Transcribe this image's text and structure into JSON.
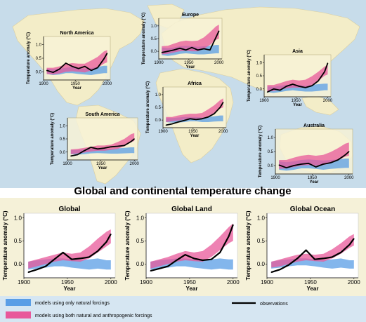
{
  "figure": {
    "main_title": "Global and continental temperature change",
    "legend": {
      "natural": "models using only natural forcings",
      "both": "models using both natural and anthropogenic forcings",
      "observations": "observations"
    },
    "colors": {
      "natural": "#5a9ee6",
      "both": "#e8589a",
      "observations": "#000000",
      "ocean": "#c7dcea",
      "land": "#f3edc8",
      "bottom_panel": "#f5f1d8",
      "legend_bg": "#d6e6f2"
    }
  },
  "chart_data": [
    {
      "type": "area",
      "title": "North America",
      "xlabel": "Year",
      "ylabel": "Temperature anomaly (°C)",
      "xticks": [
        1900,
        1950,
        2000
      ],
      "yticks": [
        0.0,
        0.5,
        1.0
      ],
      "xlim": [
        1900,
        2005
      ],
      "ylim": [
        -0.3,
        1.3
      ],
      "x": [
        1905,
        1915,
        1925,
        1935,
        1945,
        1955,
        1965,
        1975,
        1985,
        1995,
        2000
      ],
      "natural": {
        "low": [
          -0.08,
          -0.12,
          -0.1,
          -0.05,
          -0.05,
          -0.08,
          -0.1,
          -0.12,
          -0.08,
          -0.05,
          -0.05
        ],
        "high": [
          0.12,
          0.1,
          0.12,
          0.15,
          0.18,
          0.15,
          0.12,
          0.14,
          0.18,
          0.22,
          0.22
        ]
      },
      "both": {
        "low": [
          -0.08,
          -0.1,
          -0.06,
          0.0,
          0.02,
          0.0,
          -0.02,
          0.05,
          0.15,
          0.3,
          0.35
        ],
        "high": [
          0.15,
          0.15,
          0.2,
          0.28,
          0.32,
          0.3,
          0.3,
          0.42,
          0.55,
          0.75,
          0.8
        ]
      },
      "observations": [
        0.05,
        -0.02,
        0.1,
        0.32,
        0.2,
        0.12,
        0.2,
        0.05,
        0.15,
        0.48,
        0.68
      ]
    },
    {
      "type": "area",
      "title": "Europe",
      "xlabel": "Year",
      "ylabel": "Temperature anomaly (°C)",
      "xticks": [
        1900,
        1950,
        2000
      ],
      "yticks": [
        0.0,
        0.5,
        1.0
      ],
      "xlim": [
        1900,
        2005
      ],
      "ylim": [
        -0.3,
        1.3
      ],
      "x": [
        1905,
        1915,
        1925,
        1935,
        1945,
        1955,
        1965,
        1975,
        1985,
        1995,
        2000
      ],
      "natural": {
        "low": [
          -0.15,
          -0.18,
          -0.15,
          -0.1,
          -0.08,
          -0.1,
          -0.12,
          -0.12,
          -0.1,
          -0.08,
          -0.08
        ],
        "high": [
          0.15,
          0.12,
          0.15,
          0.2,
          0.22,
          0.2,
          0.18,
          0.2,
          0.22,
          0.25,
          0.25
        ]
      },
      "both": {
        "low": [
          -0.12,
          -0.1,
          -0.05,
          0.0,
          0.02,
          0.0,
          0.0,
          0.1,
          0.25,
          0.45,
          0.5
        ],
        "high": [
          0.2,
          0.22,
          0.3,
          0.38,
          0.42,
          0.4,
          0.42,
          0.55,
          0.75,
          0.98,
          1.05
        ]
      },
      "observations": [
        -0.05,
        0.0,
        0.05,
        0.12,
        0.05,
        0.15,
        0.05,
        0.1,
        0.05,
        0.55,
        0.8
      ]
    },
    {
      "type": "area",
      "title": "Asia",
      "xlabel": "Year",
      "ylabel": "Temperature anomaly (°C)",
      "xticks": [
        1900,
        1950,
        2000
      ],
      "yticks": [
        0.0,
        0.5,
        1.0
      ],
      "xlim": [
        1900,
        2005
      ],
      "ylim": [
        -0.3,
        1.3
      ],
      "x": [
        1905,
        1915,
        1925,
        1935,
        1945,
        1955,
        1965,
        1975,
        1985,
        1995,
        2000
      ],
      "natural": {
        "low": [
          -0.12,
          -0.15,
          -0.12,
          -0.08,
          -0.05,
          -0.08,
          -0.1,
          -0.1,
          -0.08,
          -0.05,
          -0.05
        ],
        "high": [
          0.1,
          0.08,
          0.12,
          0.15,
          0.18,
          0.15,
          0.12,
          0.15,
          0.18,
          0.2,
          0.2
        ]
      },
      "both": {
        "low": [
          -0.1,
          -0.08,
          -0.02,
          0.02,
          0.05,
          0.05,
          0.05,
          0.15,
          0.3,
          0.5,
          0.55
        ],
        "high": [
          0.15,
          0.15,
          0.22,
          0.3,
          0.35,
          0.32,
          0.35,
          0.48,
          0.65,
          0.85,
          0.92
        ]
      },
      "observations": [
        -0.12,
        0.0,
        -0.05,
        0.1,
        0.18,
        0.1,
        0.05,
        0.12,
        0.3,
        0.65,
        0.98
      ]
    },
    {
      "type": "area",
      "title": "Africa",
      "xlabel": "Year",
      "ylabel": "Temperature anomaly (°C)",
      "xticks": [
        1900,
        1950,
        2000
      ],
      "yticks": [
        0.0,
        0.5,
        1.0
      ],
      "xlim": [
        1900,
        2005
      ],
      "ylim": [
        -0.3,
        1.3
      ],
      "x": [
        1905,
        1915,
        1925,
        1935,
        1945,
        1955,
        1965,
        1975,
        1985,
        1995,
        2000
      ],
      "natural": {
        "low": [
          -0.08,
          -0.1,
          -0.1,
          -0.08,
          -0.05,
          -0.05,
          -0.08,
          -0.08,
          -0.06,
          -0.05,
          -0.05
        ],
        "high": [
          0.08,
          0.08,
          0.1,
          0.12,
          0.12,
          0.12,
          0.1,
          0.12,
          0.15,
          0.18,
          0.18
        ]
      },
      "both": {
        "low": [
          -0.08,
          -0.05,
          -0.02,
          0.02,
          0.05,
          0.05,
          0.08,
          0.15,
          0.28,
          0.45,
          0.5
        ],
        "high": [
          0.12,
          0.12,
          0.18,
          0.22,
          0.25,
          0.25,
          0.28,
          0.42,
          0.58,
          0.78,
          0.85
        ]
      },
      "observations": [
        -0.2,
        -0.15,
        -0.08,
        -0.02,
        0.05,
        0.02,
        0.05,
        0.12,
        0.25,
        0.5,
        0.7
      ]
    },
    {
      "type": "area",
      "title": "South America",
      "xlabel": "Year",
      "ylabel": "Temperature anomaly (°C)",
      "xticks": [
        1900,
        1950,
        2000
      ],
      "yticks": [
        0.0,
        0.5,
        1.0
      ],
      "xlim": [
        1900,
        2005
      ],
      "ylim": [
        -0.3,
        1.3
      ],
      "x": [
        1905,
        1915,
        1925,
        1935,
        1945,
        1955,
        1965,
        1975,
        1985,
        1995,
        2000
      ],
      "natural": {
        "low": [
          -0.08,
          -0.1,
          -0.08,
          -0.05,
          -0.04,
          -0.05,
          -0.06,
          -0.06,
          -0.05,
          -0.04,
          -0.04
        ],
        "high": [
          0.08,
          0.08,
          0.1,
          0.12,
          0.12,
          0.12,
          0.12,
          0.14,
          0.16,
          0.18,
          0.18
        ]
      },
      "both": {
        "low": [
          -0.08,
          -0.05,
          -0.02,
          0.02,
          0.05,
          0.05,
          0.08,
          0.12,
          0.22,
          0.38,
          0.42
        ],
        "high": [
          0.1,
          0.12,
          0.16,
          0.2,
          0.25,
          0.25,
          0.28,
          0.38,
          0.5,
          0.68,
          0.72
        ]
      },
      "observations": [
        -0.15,
        -0.1,
        0.05,
        0.18,
        0.12,
        0.15,
        0.2,
        0.22,
        0.25,
        0.4,
        0.5
      ]
    },
    {
      "type": "area",
      "title": "Australia",
      "xlabel": "Year",
      "ylabel": "Temperature anomaly (°C)",
      "xticks": [
        1900,
        1950,
        2000
      ],
      "yticks": [
        0.0,
        0.5,
        1.0
      ],
      "xlim": [
        1900,
        2005
      ],
      "ylim": [
        -0.3,
        1.3
      ],
      "x": [
        1905,
        1915,
        1925,
        1935,
        1945,
        1955,
        1965,
        1975,
        1985,
        1995,
        2000
      ],
      "natural": {
        "low": [
          -0.15,
          -0.18,
          -0.15,
          -0.1,
          -0.1,
          -0.12,
          -0.15,
          -0.12,
          -0.1,
          -0.08,
          -0.08
        ],
        "high": [
          0.15,
          0.12,
          0.15,
          0.2,
          0.22,
          0.2,
          0.18,
          0.2,
          0.22,
          0.25,
          0.25
        ]
      },
      "both": {
        "low": [
          -0.12,
          -0.1,
          -0.05,
          0.0,
          0.02,
          0.0,
          0.02,
          0.08,
          0.18,
          0.32,
          0.35
        ],
        "high": [
          0.2,
          0.2,
          0.28,
          0.35,
          0.38,
          0.35,
          0.38,
          0.48,
          0.62,
          0.78,
          0.82
        ]
      },
      "observations": [
        0.02,
        -0.08,
        0.0,
        0.05,
        0.08,
        -0.05,
        0.05,
        0.1,
        0.2,
        0.38,
        0.5
      ]
    },
    {
      "type": "area",
      "title": "Global",
      "xlabel": "Year",
      "ylabel": "Temperature anomaly (°C)",
      "xticks": [
        1900,
        1950,
        2000
      ],
      "yticks": [
        0.0,
        0.5,
        1.0
      ],
      "xlim": [
        1900,
        2005
      ],
      "ylim": [
        -0.3,
        1.1
      ],
      "x": [
        1905,
        1915,
        1925,
        1935,
        1945,
        1955,
        1965,
        1975,
        1985,
        1995,
        2000
      ],
      "natural": {
        "low": [
          -0.12,
          -0.1,
          -0.08,
          -0.05,
          -0.05,
          -0.08,
          -0.1,
          -0.12,
          -0.1,
          -0.12,
          -0.12
        ],
        "high": [
          0.05,
          0.08,
          0.1,
          0.12,
          0.12,
          0.1,
          0.08,
          0.1,
          0.12,
          0.08,
          0.08
        ]
      },
      "both": {
        "low": [
          -0.1,
          -0.05,
          0.0,
          0.05,
          0.08,
          0.06,
          0.05,
          0.12,
          0.25,
          0.38,
          0.45
        ],
        "high": [
          0.05,
          0.1,
          0.15,
          0.2,
          0.25,
          0.22,
          0.25,
          0.38,
          0.55,
          0.7,
          0.75
        ]
      },
      "observations": [
        -0.18,
        -0.12,
        -0.05,
        0.1,
        0.25,
        0.1,
        0.12,
        0.15,
        0.28,
        0.48,
        0.65
      ]
    },
    {
      "type": "area",
      "title": "Global Land",
      "xlabel": "Year",
      "ylabel": "Temperature anomaly (°C)",
      "xticks": [
        1900,
        1950,
        2000
      ],
      "yticks": [
        0.0,
        0.5,
        1.0
      ],
      "xlim": [
        1900,
        2005
      ],
      "ylim": [
        -0.3,
        1.1
      ],
      "x": [
        1905,
        1915,
        1925,
        1935,
        1945,
        1955,
        1965,
        1975,
        1985,
        1995,
        2000
      ],
      "natural": {
        "low": [
          -0.12,
          -0.1,
          -0.08,
          -0.05,
          -0.05,
          -0.08,
          -0.1,
          -0.12,
          -0.1,
          -0.12,
          -0.12
        ],
        "high": [
          0.05,
          0.08,
          0.1,
          0.12,
          0.12,
          0.1,
          0.08,
          0.1,
          0.12,
          0.1,
          0.1
        ]
      },
      "both": {
        "low": [
          -0.1,
          -0.05,
          0.0,
          0.05,
          0.08,
          0.06,
          0.05,
          0.15,
          0.3,
          0.45,
          0.5
        ],
        "high": [
          0.05,
          0.1,
          0.15,
          0.22,
          0.28,
          0.25,
          0.28,
          0.42,
          0.6,
          0.8,
          0.88
        ]
      },
      "observations": [
        -0.15,
        -0.1,
        -0.05,
        0.08,
        0.2,
        0.12,
        0.08,
        0.1,
        0.25,
        0.6,
        0.85
      ]
    },
    {
      "type": "area",
      "title": "Global Ocean",
      "xlabel": "Year",
      "ylabel": "Temperature anomaly (°C)",
      "xticks": [
        1900,
        1950,
        2000
      ],
      "yticks": [
        0.0,
        0.5,
        1.0
      ],
      "xlim": [
        1900,
        2005
      ],
      "ylim": [
        -0.3,
        1.1
      ],
      "x": [
        1905,
        1915,
        1925,
        1935,
        1945,
        1955,
        1965,
        1975,
        1985,
        1995,
        2000
      ],
      "natural": {
        "low": [
          -0.1,
          -0.08,
          -0.05,
          -0.03,
          -0.03,
          -0.05,
          -0.08,
          -0.1,
          -0.08,
          -0.1,
          -0.1
        ],
        "high": [
          0.05,
          0.08,
          0.1,
          0.12,
          0.12,
          0.1,
          0.08,
          0.1,
          0.12,
          0.08,
          0.08
        ]
      },
      "both": {
        "low": [
          -0.08,
          -0.05,
          0.0,
          0.05,
          0.08,
          0.06,
          0.05,
          0.12,
          0.22,
          0.35,
          0.4
        ],
        "high": [
          0.05,
          0.1,
          0.15,
          0.2,
          0.22,
          0.2,
          0.22,
          0.32,
          0.45,
          0.6,
          0.65
        ]
      },
      "observations": [
        -0.18,
        -0.12,
        -0.02,
        0.12,
        0.3,
        0.1,
        0.12,
        0.15,
        0.25,
        0.42,
        0.55
      ]
    }
  ]
}
